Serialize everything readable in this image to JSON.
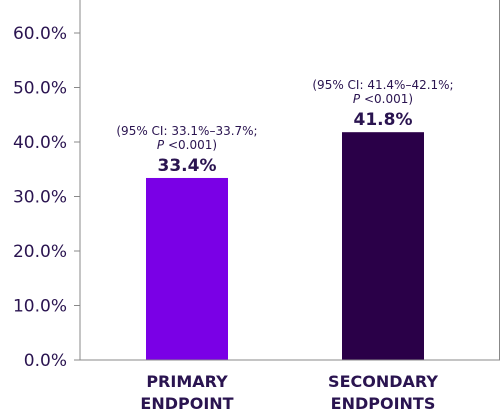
{
  "chart_data": {
    "type": "bar",
    "title": "",
    "xlabel": "",
    "ylabel": "",
    "ylim": [
      0,
      60
    ],
    "yticks": [
      "0.0%",
      "10.0%",
      "20.0%",
      "30.0%",
      "40.0%",
      "50.0%",
      "60.0%"
    ],
    "categories": [
      {
        "line1": "PRIMARY",
        "line2": "ENDPOINT"
      },
      {
        "line1": "SECONDARY",
        "line2": "ENDPOINTS"
      }
    ],
    "values": [
      33.4,
      41.8
    ],
    "value_labels": [
      "33.4%",
      "41.8%"
    ],
    "ci_labels": [
      {
        "line1": "(95% CI: 33.1%–33.7%;",
        "p_italic": "P",
        "p_rest": " <0.001)"
      },
      {
        "line1": "(95% CI: 41.4%–42.1%;",
        "p_italic": "P",
        "p_rest": " <0.001)"
      }
    ],
    "colors": [
      "#7a00e6",
      "#2a0048"
    ],
    "axis_color": "#888888",
    "text_color": "#2a1450",
    "grid": false
  }
}
